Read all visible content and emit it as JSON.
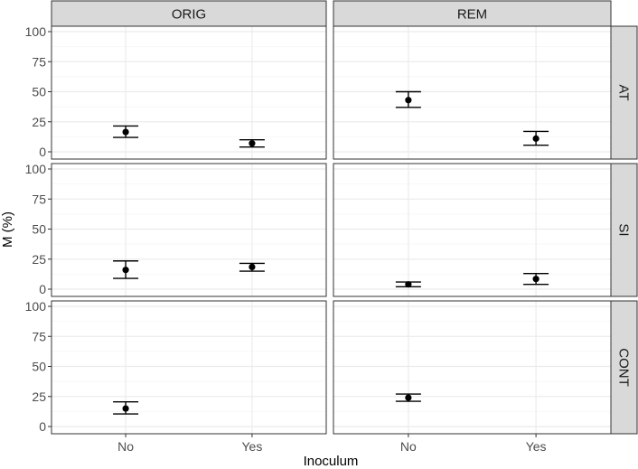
{
  "chart_data": {
    "type": "scatter",
    "facet_columns": [
      "ORIG",
      "REM"
    ],
    "facet_rows": [
      "AT",
      "SI",
      "CONT"
    ],
    "x_categories": [
      "No",
      "Yes"
    ],
    "xlabel": "Inoculum",
    "ylabel": "M (%)",
    "ylim": [
      0,
      100
    ],
    "yticks": [
      0,
      25,
      50,
      75,
      100
    ],
    "grid": true,
    "panels": [
      {
        "column": "ORIG",
        "row": "AT",
        "points": [
          {
            "x": "No",
            "mean": 16.5,
            "lower": 12,
            "upper": 21.5
          },
          {
            "x": "Yes",
            "mean": 7,
            "lower": 4,
            "upper": 10
          }
        ]
      },
      {
        "column": "REM",
        "row": "AT",
        "points": [
          {
            "x": "No",
            "mean": 43,
            "lower": 37,
            "upper": 50
          },
          {
            "x": "Yes",
            "mean": 11,
            "lower": 5.5,
            "upper": 17
          }
        ]
      },
      {
        "column": "ORIG",
        "row": "SI",
        "points": [
          {
            "x": "No",
            "mean": 16,
            "lower": 9,
            "upper": 23.5
          },
          {
            "x": "Yes",
            "mean": 18.5,
            "lower": 15,
            "upper": 21.5
          }
        ]
      },
      {
        "column": "REM",
        "row": "SI",
        "points": [
          {
            "x": "No",
            "mean": 4,
            "lower": 2,
            "upper": 6
          },
          {
            "x": "Yes",
            "mean": 8.5,
            "lower": 4,
            "upper": 13
          }
        ]
      },
      {
        "column": "ORIG",
        "row": "CONT",
        "points": [
          {
            "x": "No",
            "mean": 15,
            "lower": 10.5,
            "upper": 20.5
          }
        ]
      },
      {
        "column": "REM",
        "row": "CONT",
        "points": [
          {
            "x": "No",
            "mean": 24,
            "lower": 21,
            "upper": 27
          }
        ]
      }
    ],
    "colors": {
      "point": "#000000",
      "strip_fill": "#d9d9d9",
      "strip_border": "#333333",
      "grid_major": "#ebebeb",
      "grid_minor": "#f5f5f5",
      "panel_border": "#333333"
    }
  }
}
